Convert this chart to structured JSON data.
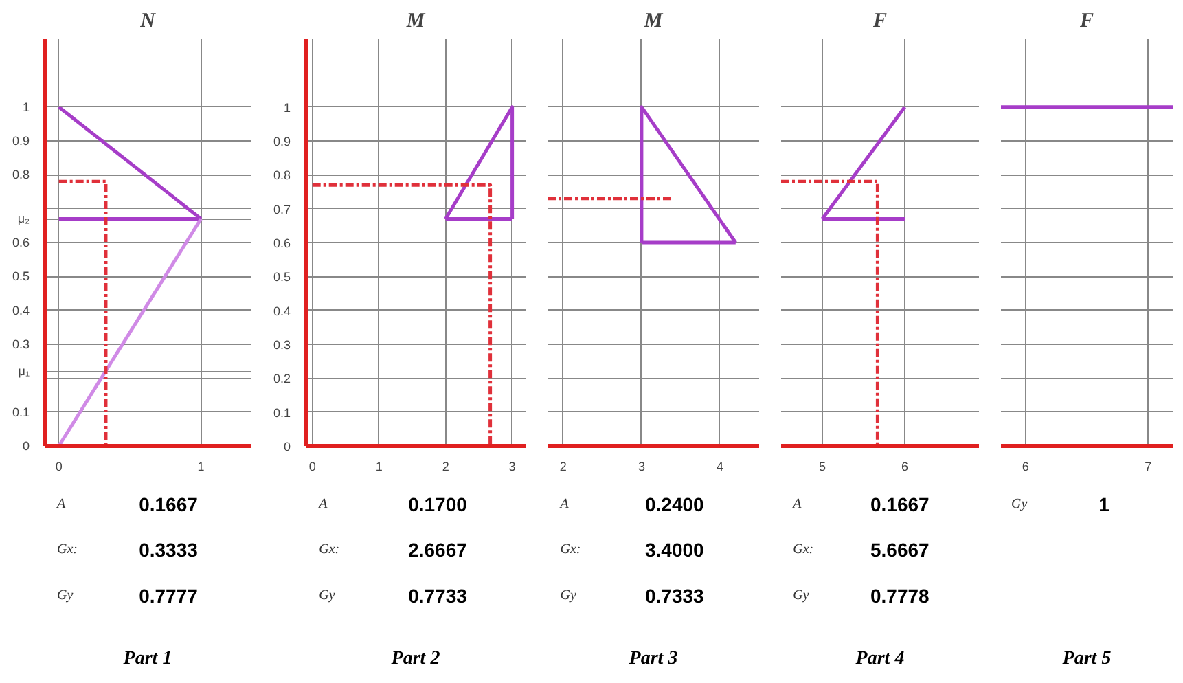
{
  "chart_data": [
    {
      "type": "line",
      "title": "N",
      "xlim": [
        -0.1,
        1.35
      ],
      "ylim": [
        0,
        1.2
      ],
      "xticks": [
        0,
        1
      ],
      "yticks": [
        0,
        0.1,
        {
          "value": 0.2,
          "label": null
        },
        {
          "value": 0.22,
          "label": "μ₁"
        },
        0.3,
        0.4,
        0.5,
        0.6,
        {
          "value": 0.67,
          "label": "μ₂"
        },
        {
          "value": 0.7,
          "label": null
        },
        0.8,
        0.9,
        1
      ],
      "grid": true,
      "series": [
        {
          "color": "#a63dc8",
          "x": [
            0,
            1
          ],
          "values": [
            1,
            0.67
          ],
          "line_style": "solid"
        },
        {
          "color": "#a63dc8",
          "x": [
            0,
            1
          ],
          "values": [
            0.67,
            0.67
          ],
          "line_style": "solid"
        },
        {
          "color": "#d08ae6",
          "x": [
            0,
            1
          ],
          "values": [
            0,
            0.67
          ],
          "line_style": "solid"
        },
        {
          "color": "#e0303a",
          "x": [
            0,
            0.33,
            0.33
          ],
          "values": [
            0.78,
            0.78,
            0
          ],
          "line_style": "dashed"
        }
      ],
      "annotations": [
        "A",
        "0.1667",
        "Gx:",
        "0.3333",
        "Gy",
        "0.7777",
        "Part 1"
      ]
    },
    {
      "type": "line",
      "title": "M",
      "xlim": [
        -0.1,
        3.2
      ],
      "ylim": [
        0,
        1.2
      ],
      "xticks": [
        0,
        1,
        2,
        3
      ],
      "yticks": [
        0,
        0.1,
        0.2,
        0.3,
        0.4,
        0.5,
        0.6,
        0.7,
        0.8,
        0.9,
        1
      ],
      "grid": true,
      "series": [
        {
          "color": "#a63dc8",
          "x": [
            2,
            3,
            3
          ],
          "values": [
            0.67,
            1,
            0.67
          ],
          "line_style": "solid"
        },
        {
          "color": "#a63dc8",
          "x": [
            2,
            3
          ],
          "values": [
            0.67,
            0.67
          ],
          "line_style": "solid"
        },
        {
          "color": "#e0303a",
          "x": [
            0,
            2.67,
            2.67
          ],
          "values": [
            0.77,
            0.77,
            0
          ],
          "line_style": "dashed"
        }
      ],
      "annotations": [
        "A",
        "0.1700",
        "Gx:",
        "2.6667",
        "Gy",
        "0.7733",
        "Part 2"
      ]
    },
    {
      "type": "line",
      "title": "M",
      "xlim": [
        1.8,
        4.5
      ],
      "ylim": [
        0,
        1.2
      ],
      "xticks": [
        2,
        3,
        4
      ],
      "yticks": [
        0,
        0.1,
        0.2,
        0.3,
        0.4,
        0.5,
        0.6,
        0.7,
        0.8,
        0.9,
        1
      ],
      "grid": true,
      "tick_labels": "x",
      "series": [
        {
          "color": "#a63dc8",
          "x": [
            3,
            3,
            4.2
          ],
          "values": [
            0.6,
            1,
            0.6
          ],
          "line_style": "solid"
        },
        {
          "color": "#a63dc8",
          "x": [
            3,
            4.2
          ],
          "values": [
            0.6,
            0.6
          ],
          "line_style": "solid"
        },
        {
          "color": "#e0303a",
          "x": [
            1.8,
            3.4
          ],
          "values": [
            0.73,
            0.73
          ],
          "line_style": "dashed"
        }
      ],
      "annotations": [
        "A",
        "0.2400",
        "Gx:",
        "3.4000",
        "Gy",
        "0.7333",
        "Part 3"
      ]
    },
    {
      "type": "line",
      "title": "F",
      "xlim": [
        4.5,
        6.9
      ],
      "ylim": [
        0,
        1.2
      ],
      "xticks": [
        5,
        6
      ],
      "yticks": [
        0,
        0.1,
        0.2,
        0.3,
        0.4,
        0.5,
        0.6,
        0.7,
        0.8,
        0.9,
        1
      ],
      "grid": true,
      "tick_labels": "x",
      "series": [
        {
          "color": "#a63dc8",
          "x": [
            5,
            6
          ],
          "values": [
            0.67,
            1
          ],
          "line_style": "solid"
        },
        {
          "color": "#a63dc8",
          "x": [
            5,
            6
          ],
          "values": [
            0.67,
            0.67
          ],
          "line_style": "solid"
        },
        {
          "color": "#e0303a",
          "x": [
            4.5,
            5.67,
            5.67
          ],
          "values": [
            0.78,
            0.78,
            0
          ],
          "line_style": "dashed"
        }
      ],
      "annotations": [
        "A",
        "0.1667",
        "Gx:",
        "5.6667",
        "Gy",
        "0.7778",
        "Part 4"
      ]
    },
    {
      "type": "line",
      "title": "F",
      "xlim": [
        5.8,
        7.2
      ],
      "ylim": [
        0,
        1.2
      ],
      "xticks": [
        6,
        7
      ],
      "yticks": [
        0,
        0.1,
        0.2,
        0.3,
        0.4,
        0.5,
        0.6,
        0.7,
        0.8,
        0.9,
        1
      ],
      "grid": true,
      "tick_labels": "x",
      "series": [
        {
          "color": "#a63dc8",
          "x": [
            5.8,
            7.2
          ],
          "values": [
            1,
            1
          ],
          "line_style": "solid"
        }
      ],
      "annotations": [
        "Gy",
        "1",
        "Part 5"
      ]
    }
  ]
}
